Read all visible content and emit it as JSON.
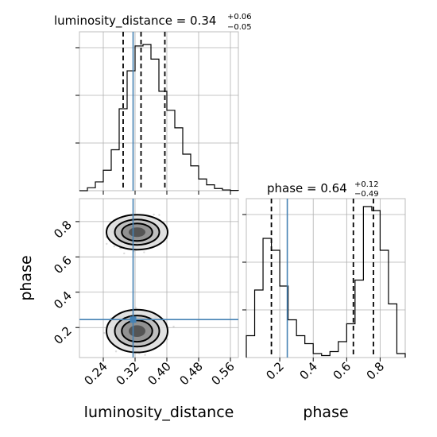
{
  "chart_data": {
    "type": "corner",
    "parameters": [
      "luminosity_distance",
      "phase"
    ],
    "truth": {
      "luminosity_distance": 0.315,
      "phase": 0.245
    },
    "marginals": [
      {
        "parameter": "luminosity_distance",
        "title_main": "luminosity_distance = 0.34",
        "title_sup": "+0.06",
        "title_sub": "−0.05",
        "median": 0.335,
        "quantiles": [
          0.29,
          0.335,
          0.395
        ],
        "range": [
          0.18,
          0.58
        ],
        "bin_edges": [
          0.18,
          0.2,
          0.22,
          0.24,
          0.26,
          0.28,
          0.3,
          0.32,
          0.34,
          0.36,
          0.38,
          0.4,
          0.42,
          0.44,
          0.46,
          0.48,
          0.5,
          0.52,
          0.54,
          0.56,
          0.58
        ],
        "counts": [
          0,
          0.02,
          0.06,
          0.14,
          0.28,
          0.56,
          0.82,
          0.99,
          1.0,
          0.9,
          0.68,
          0.55,
          0.43,
          0.25,
          0.17,
          0.08,
          0.04,
          0.015,
          0.005,
          0.002
        ]
      },
      {
        "parameter": "phase",
        "title_main": "phase = 0.64",
        "title_sup": "+0.12",
        "title_sub": "−0.49",
        "median": 0.64,
        "quantiles": [
          0.15,
          0.64,
          0.76
        ],
        "range": [
          0.0,
          0.95
        ],
        "bin_edges": [
          0.0,
          0.05,
          0.1,
          0.15,
          0.2,
          0.25,
          0.3,
          0.35,
          0.4,
          0.45,
          0.5,
          0.55,
          0.6,
          0.65,
          0.7,
          0.75,
          0.8,
          0.85,
          0.9,
          0.95
        ],
        "counts": [
          0.11,
          0.34,
          0.6,
          0.54,
          0.36,
          0.19,
          0.11,
          0.07,
          0.02,
          0.01,
          0.03,
          0.08,
          0.17,
          0.39,
          0.76,
          0.74,
          0.54,
          0.27,
          0.02
        ]
      }
    ],
    "joint": {
      "x": "luminosity_distance",
      "y": "phase",
      "xrange": [
        0.18,
        0.58
      ],
      "yrange": [
        0.03,
        0.93
      ],
      "xticks": [
        0.24,
        0.32,
        0.4,
        0.48,
        0.56
      ],
      "yticks": [
        0.2,
        0.4,
        0.6,
        0.8
      ],
      "modes": [
        {
          "x": 0.325,
          "y": 0.74,
          "sx": 0.035,
          "sy": 0.045,
          "weight": 0.62
        },
        {
          "x": 0.325,
          "y": 0.18,
          "sx": 0.035,
          "sy": 0.055,
          "weight": 0.38
        }
      ]
    },
    "phase_xticks": [
      0.2,
      0.4,
      0.6,
      0.8
    ],
    "xlabel_left": "luminosity_distance",
    "xlabel_right": "phase",
    "ylabel": "phase",
    "grid": true
  },
  "labels": {
    "x_tick_labels_left": [
      "0.24",
      "0.32",
      "0.40",
      "0.48",
      "0.56"
    ],
    "x_tick_labels_right": [
      "0.2",
      "0.4",
      "0.6",
      "0.8"
    ],
    "y_tick_labels": [
      "0.2",
      "0.4",
      "0.6",
      "0.8"
    ]
  }
}
